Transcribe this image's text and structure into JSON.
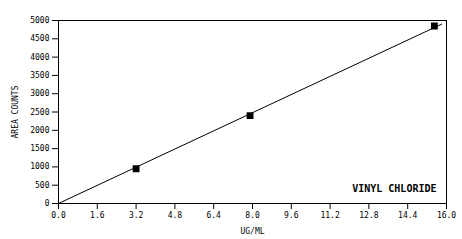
{
  "chart_data": {
    "type": "scatter",
    "xlabel": "UG/ML",
    "ylabel": "AREA COUNTS",
    "annotation": "VINYL CHLORIDE",
    "series": [
      {
        "type": "line",
        "x": [
          0.0,
          15.8
        ],
        "values": [
          0.0,
          4900
        ],
        "color": "#000000"
      },
      {
        "type": "scatter",
        "x": [
          3.2,
          7.9,
          15.5
        ],
        "values": [
          950,
          2400,
          4850
        ],
        "color": "#000000",
        "marker": "square"
      }
    ],
    "xlim": [
      0.0,
      16.0
    ],
    "ylim": [
      0,
      5000
    ],
    "xticks": [
      {
        "value": 0.0,
        "label": "0.0"
      },
      1.6,
      3.2,
      4.8,
      6.4,
      {
        "value": 8.0,
        "label": "8.0"
      },
      9.6,
      11.2,
      12.8,
      14.4,
      {
        "value": 16.0,
        "label": "16.0"
      }
    ],
    "yticks": [
      0,
      500,
      1000,
      1500,
      2000,
      2500,
      3000,
      3500,
      4000,
      4500,
      5000
    ],
    "grid": false
  }
}
